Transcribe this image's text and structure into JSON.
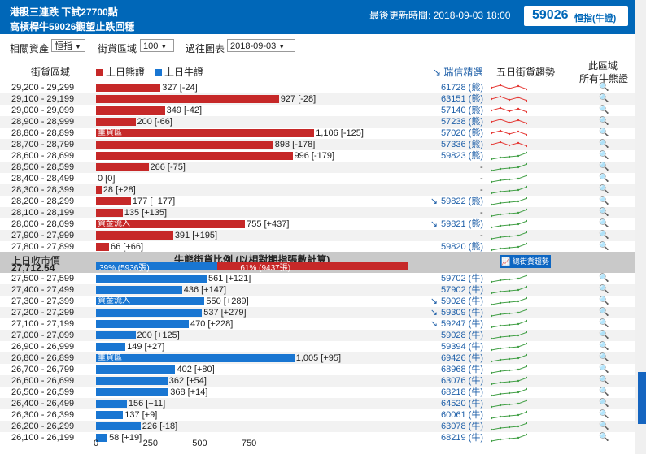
{
  "header": {
    "title1": "港股三連跌 下試27700點",
    "title2": "高槓桿牛59026觀望止跌回穩",
    "updated": "最後更新時間: 2018-09-03 18:00",
    "code": "59026",
    "code_name": "恒指(牛證)"
  },
  "filters": {
    "asset_label": "相關資產",
    "asset_value": "恒指",
    "range_label": "街貨區域",
    "range_value": "100",
    "past_label": "過往圖表",
    "past_value": "2018-09-03"
  },
  "columns": {
    "zone": "街貨區域",
    "bear_legend": "上日熊證",
    "bull_legend": "上日牛證",
    "ubs_pick": "瑞信精選",
    "trend": "五日街貨趨勢",
    "zone_all_1": "此區域",
    "zone_all_2": "所有牛熊證"
  },
  "colors": {
    "bear": "#c62828",
    "bull": "#1976d2",
    "accent": "#0067b8"
  },
  "bear_rows": [
    {
      "range": "29,200 - 29,299",
      "value": 327,
      "label": "327 [-24]",
      "code": "61728 (熊)",
      "arrow": false,
      "trend": "red"
    },
    {
      "range": "29,100 - 29,199",
      "value": 927,
      "label": "927 [-28]",
      "code": "63151 (熊)",
      "arrow": false,
      "trend": "red"
    },
    {
      "range": "29,000 - 29,099",
      "value": 349,
      "label": "349 [-42]",
      "code": "57140 (熊)",
      "arrow": false,
      "trend": "red"
    },
    {
      "range": "28,900 - 28,999",
      "value": 200,
      "label": "200 [-66]",
      "code": "57238 (熊)",
      "arrow": false,
      "trend": "red"
    },
    {
      "range": "28,800 - 28,899",
      "value": 1106,
      "label": "1,106 [-125]",
      "code": "57020 (熊)",
      "arrow": false,
      "trend": "red",
      "tag": "重貨區"
    },
    {
      "range": "28,700 - 28,799",
      "value": 898,
      "label": "898 [-178]",
      "code": "57336 (熊)",
      "arrow": false,
      "trend": "red"
    },
    {
      "range": "28,600 - 28,699",
      "value": 996,
      "label": "996 [-179]",
      "code": "59823 (熊)",
      "arrow": false,
      "trend": "green"
    },
    {
      "range": "28,500 - 28,599",
      "value": 266,
      "label": "266 [-75]",
      "code": "-",
      "arrow": false,
      "trend": "green"
    },
    {
      "range": "28,400 - 28,499",
      "value": 0,
      "label": "0 [0]",
      "code": "-",
      "arrow": false,
      "trend": "green"
    },
    {
      "range": "28,300 - 28,399",
      "value": 28,
      "label": "28 [+28]",
      "code": "-",
      "arrow": false,
      "trend": "green"
    },
    {
      "range": "28,200 - 28,299",
      "value": 177,
      "label": "177 [+177]",
      "code": "59822 (熊)",
      "arrow": true,
      "trend": "green"
    },
    {
      "range": "28,100 - 28,199",
      "value": 135,
      "label": "135 [+135]",
      "code": "-",
      "arrow": false,
      "trend": "green"
    },
    {
      "range": "28,000 - 28,099",
      "value": 755,
      "label": "755 [+437]",
      "code": "59821 (熊)",
      "arrow": true,
      "trend": "green",
      "tag": "資金流入"
    },
    {
      "range": "27,900 - 27,999",
      "value": 391,
      "label": "391 [+195]",
      "code": "-",
      "arrow": false,
      "trend": "green"
    },
    {
      "range": "27,800 - 27,899",
      "value": 66,
      "label": "66 [+66]",
      "code": "59820 (熊)",
      "arrow": false,
      "trend": "green"
    }
  ],
  "ratio": {
    "close_label": "上日收市價",
    "close_value": "27,712.54",
    "title": "牛熊街貨比例 (以相對期指張數計算)",
    "bull_pct": 39,
    "bear_pct": 61,
    "bull_label": "39% (5936張)",
    "bear_label": "61% (9437張)",
    "trend_button": "總街貨趨勢"
  },
  "bull_rows": [
    {
      "range": "27,500 - 27,599",
      "value": 561,
      "label": "561 [+121]",
      "code": "59702 (牛)",
      "arrow": false,
      "trend": "green"
    },
    {
      "range": "27,400 - 27,499",
      "value": 436,
      "label": "436 [+147]",
      "code": "57902 (牛)",
      "arrow": false,
      "trend": "green"
    },
    {
      "range": "27,300 - 27,399",
      "value": 550,
      "label": "550 [+289]",
      "code": "59026 (牛)",
      "arrow": true,
      "trend": "green",
      "tag": "資金流入"
    },
    {
      "range": "27,200 - 27,299",
      "value": 537,
      "label": "537 [+279]",
      "code": "59309 (牛)",
      "arrow": true,
      "trend": "green"
    },
    {
      "range": "27,100 - 27,199",
      "value": 470,
      "label": "470 [+228]",
      "code": "59247 (牛)",
      "arrow": true,
      "trend": "green"
    },
    {
      "range": "27,000 - 27,099",
      "value": 200,
      "label": "200 [+125]",
      "code": "59028 (牛)",
      "arrow": false,
      "trend": "green"
    },
    {
      "range": "26,900 - 26,999",
      "value": 149,
      "label": "149 [+27]",
      "code": "59394 (牛)",
      "arrow": false,
      "trend": "green"
    },
    {
      "range": "26,800 - 26,899",
      "value": 1005,
      "label": "1,005 [+95]",
      "code": "69426 (牛)",
      "arrow": false,
      "trend": "green",
      "tag": "重貨區"
    },
    {
      "range": "26,700 - 26,799",
      "value": 402,
      "label": "402 [+80]",
      "code": "68968 (牛)",
      "arrow": false,
      "trend": "green"
    },
    {
      "range": "26,600 - 26,699",
      "value": 362,
      "label": "362 [+54]",
      "code": "63076 (牛)",
      "arrow": false,
      "trend": "green"
    },
    {
      "range": "26,500 - 26,599",
      "value": 368,
      "label": "368 [+14]",
      "code": "68218 (牛)",
      "arrow": false,
      "trend": "green"
    },
    {
      "range": "26,400 - 26,499",
      "value": 156,
      "label": "156 [+11]",
      "code": "64520 (牛)",
      "arrow": false,
      "trend": "green"
    },
    {
      "range": "26,300 - 26,399",
      "value": 137,
      "label": "137 [+9]",
      "code": "60061 (牛)",
      "arrow": false,
      "trend": "green"
    },
    {
      "range": "26,200 - 26,299",
      "value": 226,
      "label": "226 [-18]",
      "code": "63078 (牛)",
      "arrow": false,
      "trend": "green"
    },
    {
      "range": "26,100 - 26,199",
      "value": 58,
      "label": "58 [+19]",
      "code": "68219 (牛)",
      "arrow": false,
      "trend": "green"
    }
  ],
  "axis": {
    "ticks": [
      "0",
      "250",
      "500",
      "750"
    ],
    "max": 1106
  }
}
